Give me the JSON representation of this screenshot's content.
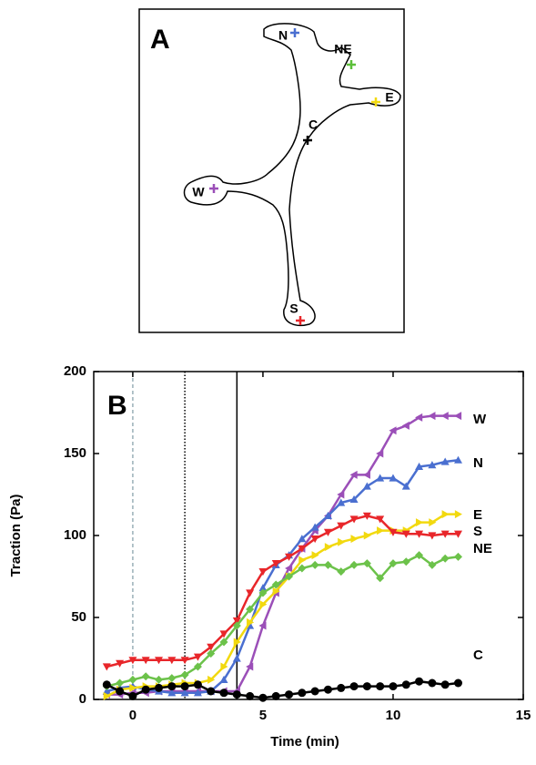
{
  "panel_a": {
    "label": "A",
    "points": [
      {
        "label": "N",
        "color": "#4a6fd0"
      },
      {
        "label": "NE",
        "color": "#5cbf3a"
      },
      {
        "label": "E",
        "color": "#f2d90f"
      },
      {
        "label": "C",
        "color": "#000000"
      },
      {
        "label": "W",
        "color": "#9b4fb8"
      },
      {
        "label": "S",
        "color": "#e8262a"
      }
    ]
  },
  "chart_data": {
    "type": "line",
    "panel_label": "B",
    "x_label": "Time (min)",
    "y_label": "Traction (Pa)",
    "xlim": [
      -1.5,
      15
    ],
    "ylim": [
      0,
      200
    ],
    "xticks": [
      0,
      5,
      10,
      15
    ],
    "yticks": [
      0,
      50,
      100,
      150,
      200
    ],
    "vlines": [
      {
        "x": 0,
        "style": "dashed",
        "color": "#9ab0b8"
      },
      {
        "x": 2,
        "style": "dotted",
        "color": "#000000"
      },
      {
        "x": 4,
        "style": "solid",
        "color": "#000000"
      }
    ],
    "x": [
      -1,
      -0.5,
      0,
      0.5,
      1,
      1.5,
      2,
      2.5,
      3,
      3.5,
      4,
      4.5,
      5,
      5.5,
      6,
      6.5,
      7,
      7.5,
      8,
      8.5,
      9,
      9.5,
      10,
      10.5,
      11,
      11.5,
      12,
      12.5
    ],
    "series": [
      {
        "name": "W",
        "color": "#9b4fb8",
        "marker": "triangle-left",
        "values": [
          3,
          3,
          4,
          4,
          5,
          5,
          5,
          5,
          5,
          5,
          5,
          20,
          45,
          65,
          80,
          92,
          103,
          112,
          125,
          137,
          137,
          150,
          164,
          167,
          172,
          173,
          173,
          173
        ]
      },
      {
        "name": "N",
        "color": "#4a6fd0",
        "marker": "triangle-up",
        "values": [
          5,
          7,
          8,
          6,
          5,
          4,
          4,
          4,
          5,
          12,
          25,
          45,
          68,
          82,
          88,
          98,
          105,
          112,
          120,
          122,
          130,
          135,
          135,
          130,
          142,
          143,
          145,
          146
        ]
      },
      {
        "name": "E",
        "color": "#f2d90f",
        "marker": "triangle-right",
        "values": [
          2,
          6,
          7,
          8,
          8,
          9,
          10,
          10,
          12,
          20,
          35,
          47,
          58,
          66,
          75,
          85,
          88,
          93,
          96,
          98,
          100,
          103,
          103,
          103,
          108,
          108,
          113,
          113
        ]
      },
      {
        "name": "S",
        "color": "#e8262a",
        "marker": "triangle-down",
        "values": [
          20,
          22,
          24,
          24,
          24,
          24,
          24,
          26,
          32,
          40,
          48,
          65,
          78,
          83,
          87,
          92,
          98,
          102,
          106,
          110,
          112,
          110,
          102,
          101,
          101,
          100,
          101,
          101
        ]
      },
      {
        "name": "NE",
        "color": "#6cc24a",
        "marker": "diamond",
        "values": [
          8,
          10,
          12,
          14,
          12,
          13,
          15,
          20,
          28,
          35,
          45,
          55,
          65,
          70,
          75,
          80,
          82,
          82,
          78,
          82,
          83,
          74,
          83,
          84,
          88,
          82,
          86,
          87
        ]
      },
      {
        "name": "C",
        "color": "#000000",
        "marker": "circle",
        "values": [
          9,
          5,
          2,
          6,
          7,
          8,
          8,
          9,
          5,
          4,
          3,
          2,
          1,
          2,
          3,
          4,
          5,
          6,
          7,
          8,
          8,
          8,
          8,
          9,
          11,
          10,
          9,
          10
        ]
      }
    ]
  }
}
